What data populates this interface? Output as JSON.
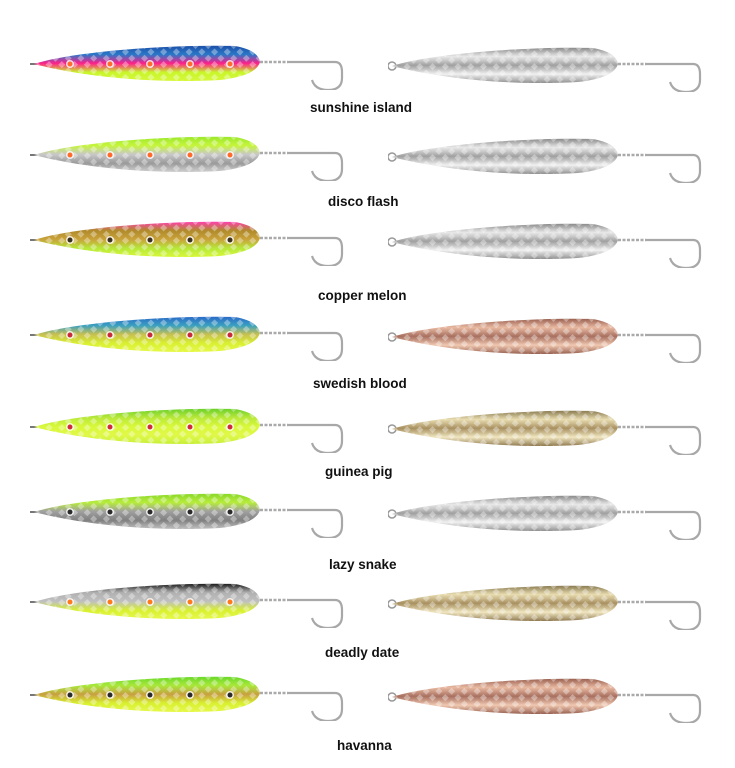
{
  "lures": [
    {
      "name": "sunshine island",
      "colors": [
        "#1b4fa8",
        "#2a78c8",
        "#ff1f8a",
        "#c8f52a",
        "#d6f83a"
      ],
      "spots": "#ff6a2a",
      "metal": "silver"
    },
    {
      "name": "disco flash",
      "colors": [
        "#9be82c",
        "#c6f53a",
        "#c8c8c8",
        "#9a9a9a",
        "#d0d0d0"
      ],
      "spots": "#ff6a2a",
      "metal": "silver"
    },
    {
      "name": "copper melon",
      "colors": [
        "#ff3fb0",
        "#b08a2a",
        "#c9a23a",
        "#b6e83a",
        "#d8f83a"
      ],
      "spots": "#3a3020",
      "metal": "silver"
    },
    {
      "name": "swedish blood",
      "colors": [
        "#2a6ac8",
        "#3aa0c0",
        "#c8c050",
        "#d8f030",
        "#e6f84a"
      ],
      "spots": "#c82a3a",
      "metal": "copper"
    },
    {
      "name": "guinea pig",
      "colors": [
        "#6ad02a",
        "#b8e83a",
        "#d8f83a",
        "#e0f848",
        "#c8f03a"
      ],
      "spots": "#d02a3a",
      "metal": "gold"
    },
    {
      "name": "lazy snake",
      "colors": [
        "#8ad82a",
        "#b6ec3a",
        "#a0a0a0",
        "#808080",
        "#c0c0c0"
      ],
      "spots": "#2a2a2a",
      "metal": "silver"
    },
    {
      "name": "deadly date",
      "colors": [
        "#1a1a1a",
        "#b0b0b0",
        "#c0c0c0",
        "#d8f030",
        "#e6f84a"
      ],
      "spots": "#ff7a1a",
      "metal": "gold"
    },
    {
      "name": "havanna",
      "colors": [
        "#6ad82a",
        "#a8e83a",
        "#c8a040",
        "#d8f030",
        "#e6f84a"
      ],
      "spots": "#2a2a2a",
      "metal": "copper"
    }
  ],
  "metals": {
    "silver": [
      "#8a8a8a",
      "#e8e8e8",
      "#a0a0a0",
      "#f0f0f0",
      "#909090"
    ],
    "copper": [
      "#9a6050",
      "#e8b8a0",
      "#a87060",
      "#f0c8b0",
      "#986050"
    ],
    "gold": [
      "#8a7a50",
      "#e8dcb0",
      "#a89060",
      "#f0e6c0",
      "#907a50"
    ]
  }
}
